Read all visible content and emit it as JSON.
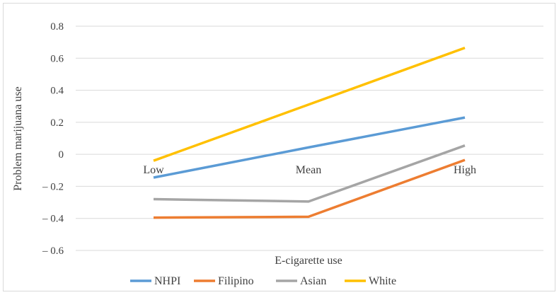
{
  "chart_data": {
    "type": "line",
    "title": "",
    "xlabel": "E-cigarette use",
    "ylabel": "Problem marijuana use",
    "categories": [
      "Low",
      "Mean",
      "High"
    ],
    "ylim": [
      -0.6,
      0.8
    ],
    "yticks": [
      0.8,
      0.6,
      0.4,
      0.2,
      0,
      -0.2,
      -0.4,
      -0.6
    ],
    "ytick_labels": [
      "0.8",
      "0.6",
      "0.4",
      "0.2",
      "0",
      "– 0.2",
      "– 0.4",
      "– 0.6"
    ],
    "grid": true,
    "legend_position": "bottom",
    "series": [
      {
        "name": "NHPI",
        "color": "#5b9bd5",
        "values": [
          -0.145,
          0.043,
          0.23
        ]
      },
      {
        "name": "Filipino",
        "color": "#ed7d31",
        "values": [
          -0.395,
          -0.39,
          -0.035
        ]
      },
      {
        "name": "Asian",
        "color": "#a5a5a5",
        "values": [
          -0.28,
          -0.295,
          0.055
        ]
      },
      {
        "name": "White",
        "color": "#ffc000",
        "values": [
          -0.04,
          0.31,
          0.665
        ]
      }
    ]
  }
}
